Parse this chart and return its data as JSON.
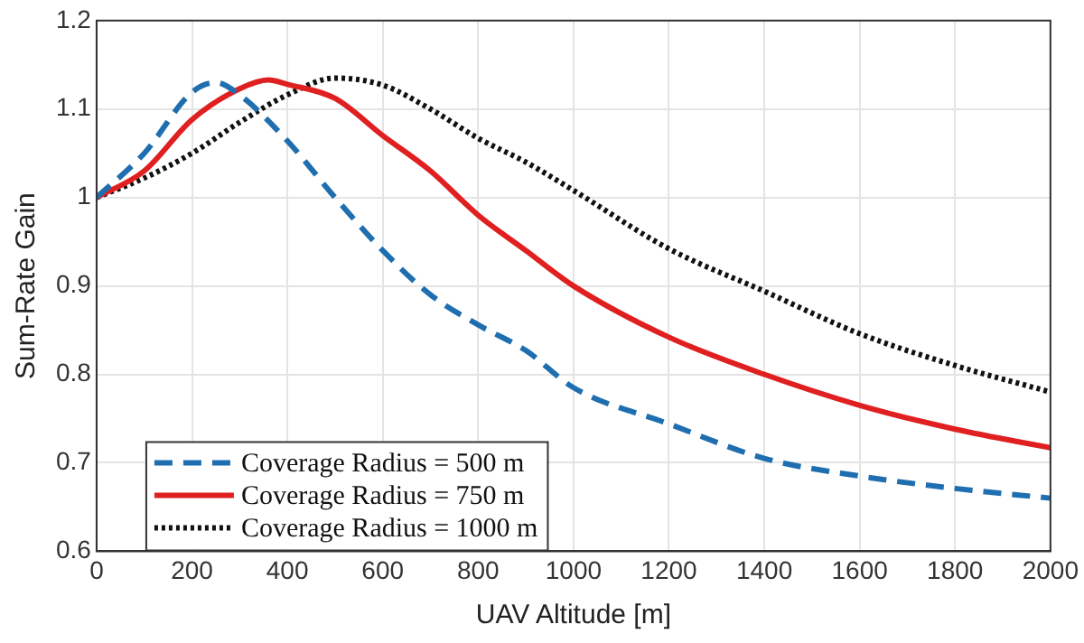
{
  "chart_data": {
    "type": "line",
    "xlabel": "UAV Altitude [m]",
    "ylabel": "Sum-Rate Gain",
    "xlim": [
      0,
      2000
    ],
    "ylim": [
      0.6,
      1.2
    ],
    "xticks": [
      0,
      200,
      400,
      600,
      800,
      1000,
      1200,
      1400,
      1600,
      1800,
      2000
    ],
    "yticks": [
      0.6,
      0.7,
      0.8,
      0.9,
      1,
      1.1,
      1.2
    ],
    "grid": true,
    "legend": "bottom left",
    "marker": "none",
    "series": [
      {
        "name": "Coverage Radius = 500 m",
        "color": "#1f6fb0",
        "line_style": "dashed",
        "x": [
          0,
          100,
          200,
          250,
          300,
          400,
          500,
          600,
          700,
          800,
          900,
          1000,
          1200,
          1400,
          1600,
          1800,
          2000
        ],
        "values": [
          1.0,
          1.05,
          1.119,
          1.13,
          1.116,
          1.064,
          1.0,
          0.94,
          0.89,
          0.856,
          0.827,
          0.785,
          0.744,
          0.705,
          0.685,
          0.671,
          0.66
        ]
      },
      {
        "name": "Coverage Radius = 750 m",
        "color": "#e02020",
        "line_style": "solid",
        "x": [
          0,
          100,
          200,
          300,
          360,
          400,
          500,
          600,
          700,
          800,
          900,
          1000,
          1200,
          1400,
          1600,
          1800,
          2000
        ],
        "values": [
          1.0,
          1.03,
          1.088,
          1.123,
          1.133,
          1.128,
          1.112,
          1.07,
          1.03,
          0.98,
          0.94,
          0.9,
          0.842,
          0.8,
          0.765,
          0.738,
          0.717
        ]
      },
      {
        "name": "Coverage Radius = 1000 m",
        "color": "#111111",
        "line_style": "dotted",
        "x": [
          0,
          100,
          200,
          300,
          400,
          500,
          600,
          700,
          800,
          900,
          1000,
          1200,
          1400,
          1600,
          1800,
          2000
        ],
        "values": [
          1.0,
          1.022,
          1.05,
          1.085,
          1.116,
          1.135,
          1.127,
          1.1,
          1.067,
          1.04,
          1.008,
          0.942,
          0.894,
          0.846,
          0.81,
          0.78
        ]
      }
    ]
  }
}
